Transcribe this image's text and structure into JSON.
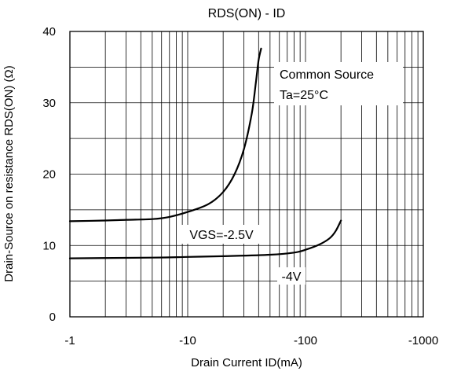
{
  "chart_data": {
    "type": "line",
    "title": "RDS(ON) - ID",
    "xlabel": "Drain Current ID(mA)",
    "ylabel": "Drain-Source on resistance RDS(ON) (Ω)",
    "x_scale": "log",
    "xlim": [
      -1,
      -1000
    ],
    "ylim": [
      0,
      40
    ],
    "x_ticks": [
      -1,
      -10,
      -100,
      -1000
    ],
    "x_tick_labels": [
      "-1",
      "-10",
      "-100",
      "-1000"
    ],
    "y_ticks": [
      0,
      10,
      20,
      30,
      40
    ],
    "y_tick_labels": [
      "0",
      "10",
      "20",
      "30",
      "40"
    ],
    "grid": true,
    "annotations": [
      "Common Source",
      "Ta=25°C"
    ],
    "series": [
      {
        "name": "VGS=-2.5V",
        "x": [
          -1,
          -2,
          -3,
          -5,
          -7,
          -10,
          -15,
          -20,
          -25,
          -30,
          -35,
          -38,
          -40,
          -42
        ],
        "y": [
          13.4,
          13.5,
          13.6,
          13.7,
          14,
          14.7,
          15.8,
          17.5,
          20,
          23.5,
          28.5,
          33,
          36,
          37.6
        ]
      },
      {
        "name": "-4V",
        "x": [
          -1,
          -5,
          -10,
          -20,
          -50,
          -80,
          -100,
          -130,
          -160,
          -180,
          -200
        ],
        "y": [
          8.2,
          8.3,
          8.4,
          8.5,
          8.7,
          9.0,
          9.4,
          10.1,
          11.0,
          12.0,
          13.5
        ]
      }
    ]
  }
}
